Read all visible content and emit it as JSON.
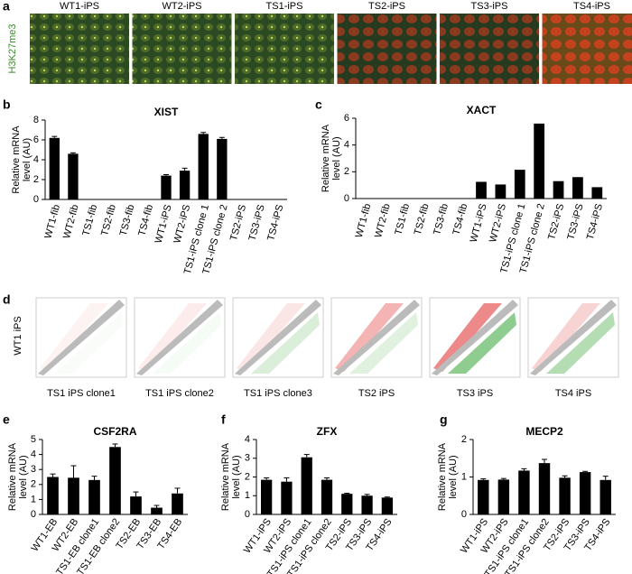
{
  "microscopy": {
    "panel": "a",
    "stain": "H3K27me3",
    "labels": [
      "WT1-iPS",
      "WT2-iPS",
      "TS1-iPS",
      "TS2-iPS",
      "TS3-iPS",
      "TS4-iPS"
    ]
  },
  "scatter": {
    "panel": "d",
    "y_label": "WT1 iPS",
    "labels": [
      "TS1 iPS clone1",
      "TS1 iPS clone2",
      "TS1 iPS clone3",
      "TS2 iPS",
      "TS3 iPS",
      "TS4 iPS"
    ]
  },
  "chart_data": [
    {
      "type": "bar",
      "panel": "b",
      "title": "XIST",
      "ylabel": [
        "Relative mRNA",
        "level (AU)"
      ],
      "color": "#000000",
      "categories": [
        "WT1-fib",
        "WT2-fib",
        "TS1-fib",
        "TS2-fib",
        "TS3-fib",
        "TS4-fib",
        "WT1-iPS",
        "WT2-iPS",
        "TS1-iPS clone 1",
        "TS1-iPS clone 2",
        "TS2-iPS",
        "TS3-iPS",
        "TS4-iPS"
      ],
      "values": [
        6.2,
        4.6,
        0,
        0,
        0,
        0,
        2.4,
        2.9,
        6.6,
        6.1,
        0,
        0,
        0
      ],
      "errors": [
        0.15,
        0.1,
        0,
        0,
        0,
        0,
        0.1,
        0.25,
        0.15,
        0.15,
        0,
        0,
        0
      ],
      "ylim": [
        0,
        8
      ],
      "yticks": [
        0,
        2,
        4,
        6,
        8
      ]
    },
    {
      "type": "bar",
      "panel": "c",
      "title": "XACT",
      "ylabel": [
        "Relative mRNA",
        "level (AU)"
      ],
      "color": "#000000",
      "categories": [
        "WT1-fib",
        "WT2-fib",
        "TS1-fib",
        "TS2-fib",
        "TS3-fib",
        "TS4-fib",
        "WT1-iPS",
        "WT2-iPS",
        "TS1-iPS clone 1",
        "TS1-iPS clone 2",
        "TS2-iPS",
        "TS3-iPS",
        "TS4-iPS"
      ],
      "values": [
        0,
        0,
        0,
        0,
        0,
        0,
        1.25,
        1.05,
        2.15,
        5.6,
        1.3,
        1.6,
        0.85
      ],
      "ylim": [
        0,
        6
      ],
      "yticks": [
        0,
        2,
        4,
        6
      ]
    },
    {
      "type": "bar",
      "panel": "e",
      "title": "CSF2RA",
      "ylabel": [
        "Relative mRNA",
        "level (AU)"
      ],
      "color": "#000000",
      "categories": [
        "WT1-EB",
        "WT2-EB",
        "TS1-EB clone1",
        "TS1-EB clone2",
        "TS2-EB",
        "TS3-EB",
        "TS4-EB"
      ],
      "values": [
        2.5,
        2.45,
        2.3,
        4.5,
        1.2,
        0.45,
        1.4
      ],
      "errors": [
        0.2,
        0.8,
        0.25,
        0.2,
        0.3,
        0.15,
        0.35
      ],
      "ylim": [
        0,
        5
      ],
      "yticks": [
        0,
        1,
        2,
        3,
        4,
        5
      ]
    },
    {
      "type": "bar",
      "panel": "f",
      "title": "ZFX",
      "ylabel": [
        "Relative mRNA",
        "level (AU)"
      ],
      "color": "#000000",
      "categories": [
        "WT1-iPS",
        "WT2-iPS",
        "TS1-iPS clone1",
        "TS1-iPS clone2",
        "TS2-iPS",
        "TS3-iPS",
        "TS4-iPS"
      ],
      "values": [
        1.85,
        1.75,
        3.05,
        1.85,
        1.1,
        1.0,
        0.9
      ],
      "errors": [
        0.1,
        0.2,
        0.15,
        0.1,
        0.03,
        0.07,
        0.03
      ],
      "ylim": [
        0,
        4
      ],
      "yticks": [
        0,
        1,
        2,
        3,
        4
      ]
    },
    {
      "type": "bar",
      "panel": "g",
      "title": "MECP2",
      "ylabel": [
        "Relative mRNA",
        "level (AU)"
      ],
      "color": "#000000",
      "categories": [
        "WT1-iPS",
        "WT2-iPS",
        "TS1-iPS clone1",
        "TS1-iPS clone2",
        "TS2-iPS",
        "TS3-iPS",
        "TS4-iPS"
      ],
      "values": [
        0.92,
        0.93,
        1.17,
        1.37,
        0.98,
        1.13,
        0.92
      ],
      "errors": [
        0.03,
        0.03,
        0.05,
        0.1,
        0.05,
        0.02,
        0.1
      ],
      "ylim": [
        0,
        2
      ],
      "yticks": [
        0,
        1,
        2
      ]
    }
  ]
}
